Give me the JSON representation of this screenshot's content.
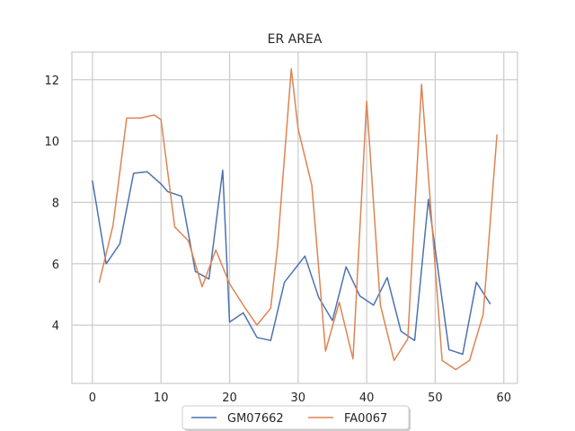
{
  "chart_data": {
    "type": "line",
    "title": "ER AREA",
    "xlabel": "",
    "ylabel": "",
    "xlim": [
      -3,
      62
    ],
    "ylim": [
      2.1,
      12.9
    ],
    "xticks": [
      0,
      10,
      20,
      30,
      40,
      50,
      60
    ],
    "yticks": [
      4,
      6,
      8,
      10,
      12
    ],
    "grid": true,
    "legend_position": "bottom-center",
    "series": [
      {
        "name": "GM07662",
        "color": "#4c72b0",
        "x": [
          0,
          2,
          4,
          6,
          8,
          10,
          11,
          13,
          15,
          17,
          19,
          20,
          22,
          24,
          26,
          28,
          31,
          33,
          35,
          37,
          39,
          41,
          43,
          45,
          47,
          49,
          52,
          54,
          56,
          58
        ],
        "y": [
          8.7,
          6.0,
          6.65,
          8.95,
          9.0,
          8.6,
          8.35,
          8.2,
          5.75,
          5.5,
          9.05,
          4.1,
          4.4,
          3.6,
          3.5,
          5.4,
          6.25,
          4.9,
          4.15,
          5.9,
          4.95,
          4.65,
          5.55,
          3.8,
          3.5,
          8.1,
          3.2,
          3.05,
          5.4,
          4.7
        ]
      },
      {
        "name": "FA0067",
        "color": "#dd8452",
        "x": [
          1,
          3,
          5,
          7,
          9,
          10,
          12,
          14,
          16,
          18,
          20,
          22,
          24,
          26,
          27,
          29,
          30,
          32,
          34,
          36,
          38,
          40,
          42,
          44,
          46,
          48,
          51,
          53,
          55,
          57,
          59
        ],
        "y": [
          5.4,
          7.25,
          10.75,
          10.75,
          10.85,
          10.7,
          7.2,
          6.75,
          5.25,
          6.45,
          5.35,
          4.65,
          4.0,
          4.55,
          6.55,
          12.35,
          10.4,
          8.55,
          3.15,
          4.75,
          2.9,
          11.3,
          4.65,
          2.85,
          3.55,
          11.85,
          2.85,
          2.55,
          2.85,
          4.35,
          10.2
        ]
      }
    ]
  }
}
